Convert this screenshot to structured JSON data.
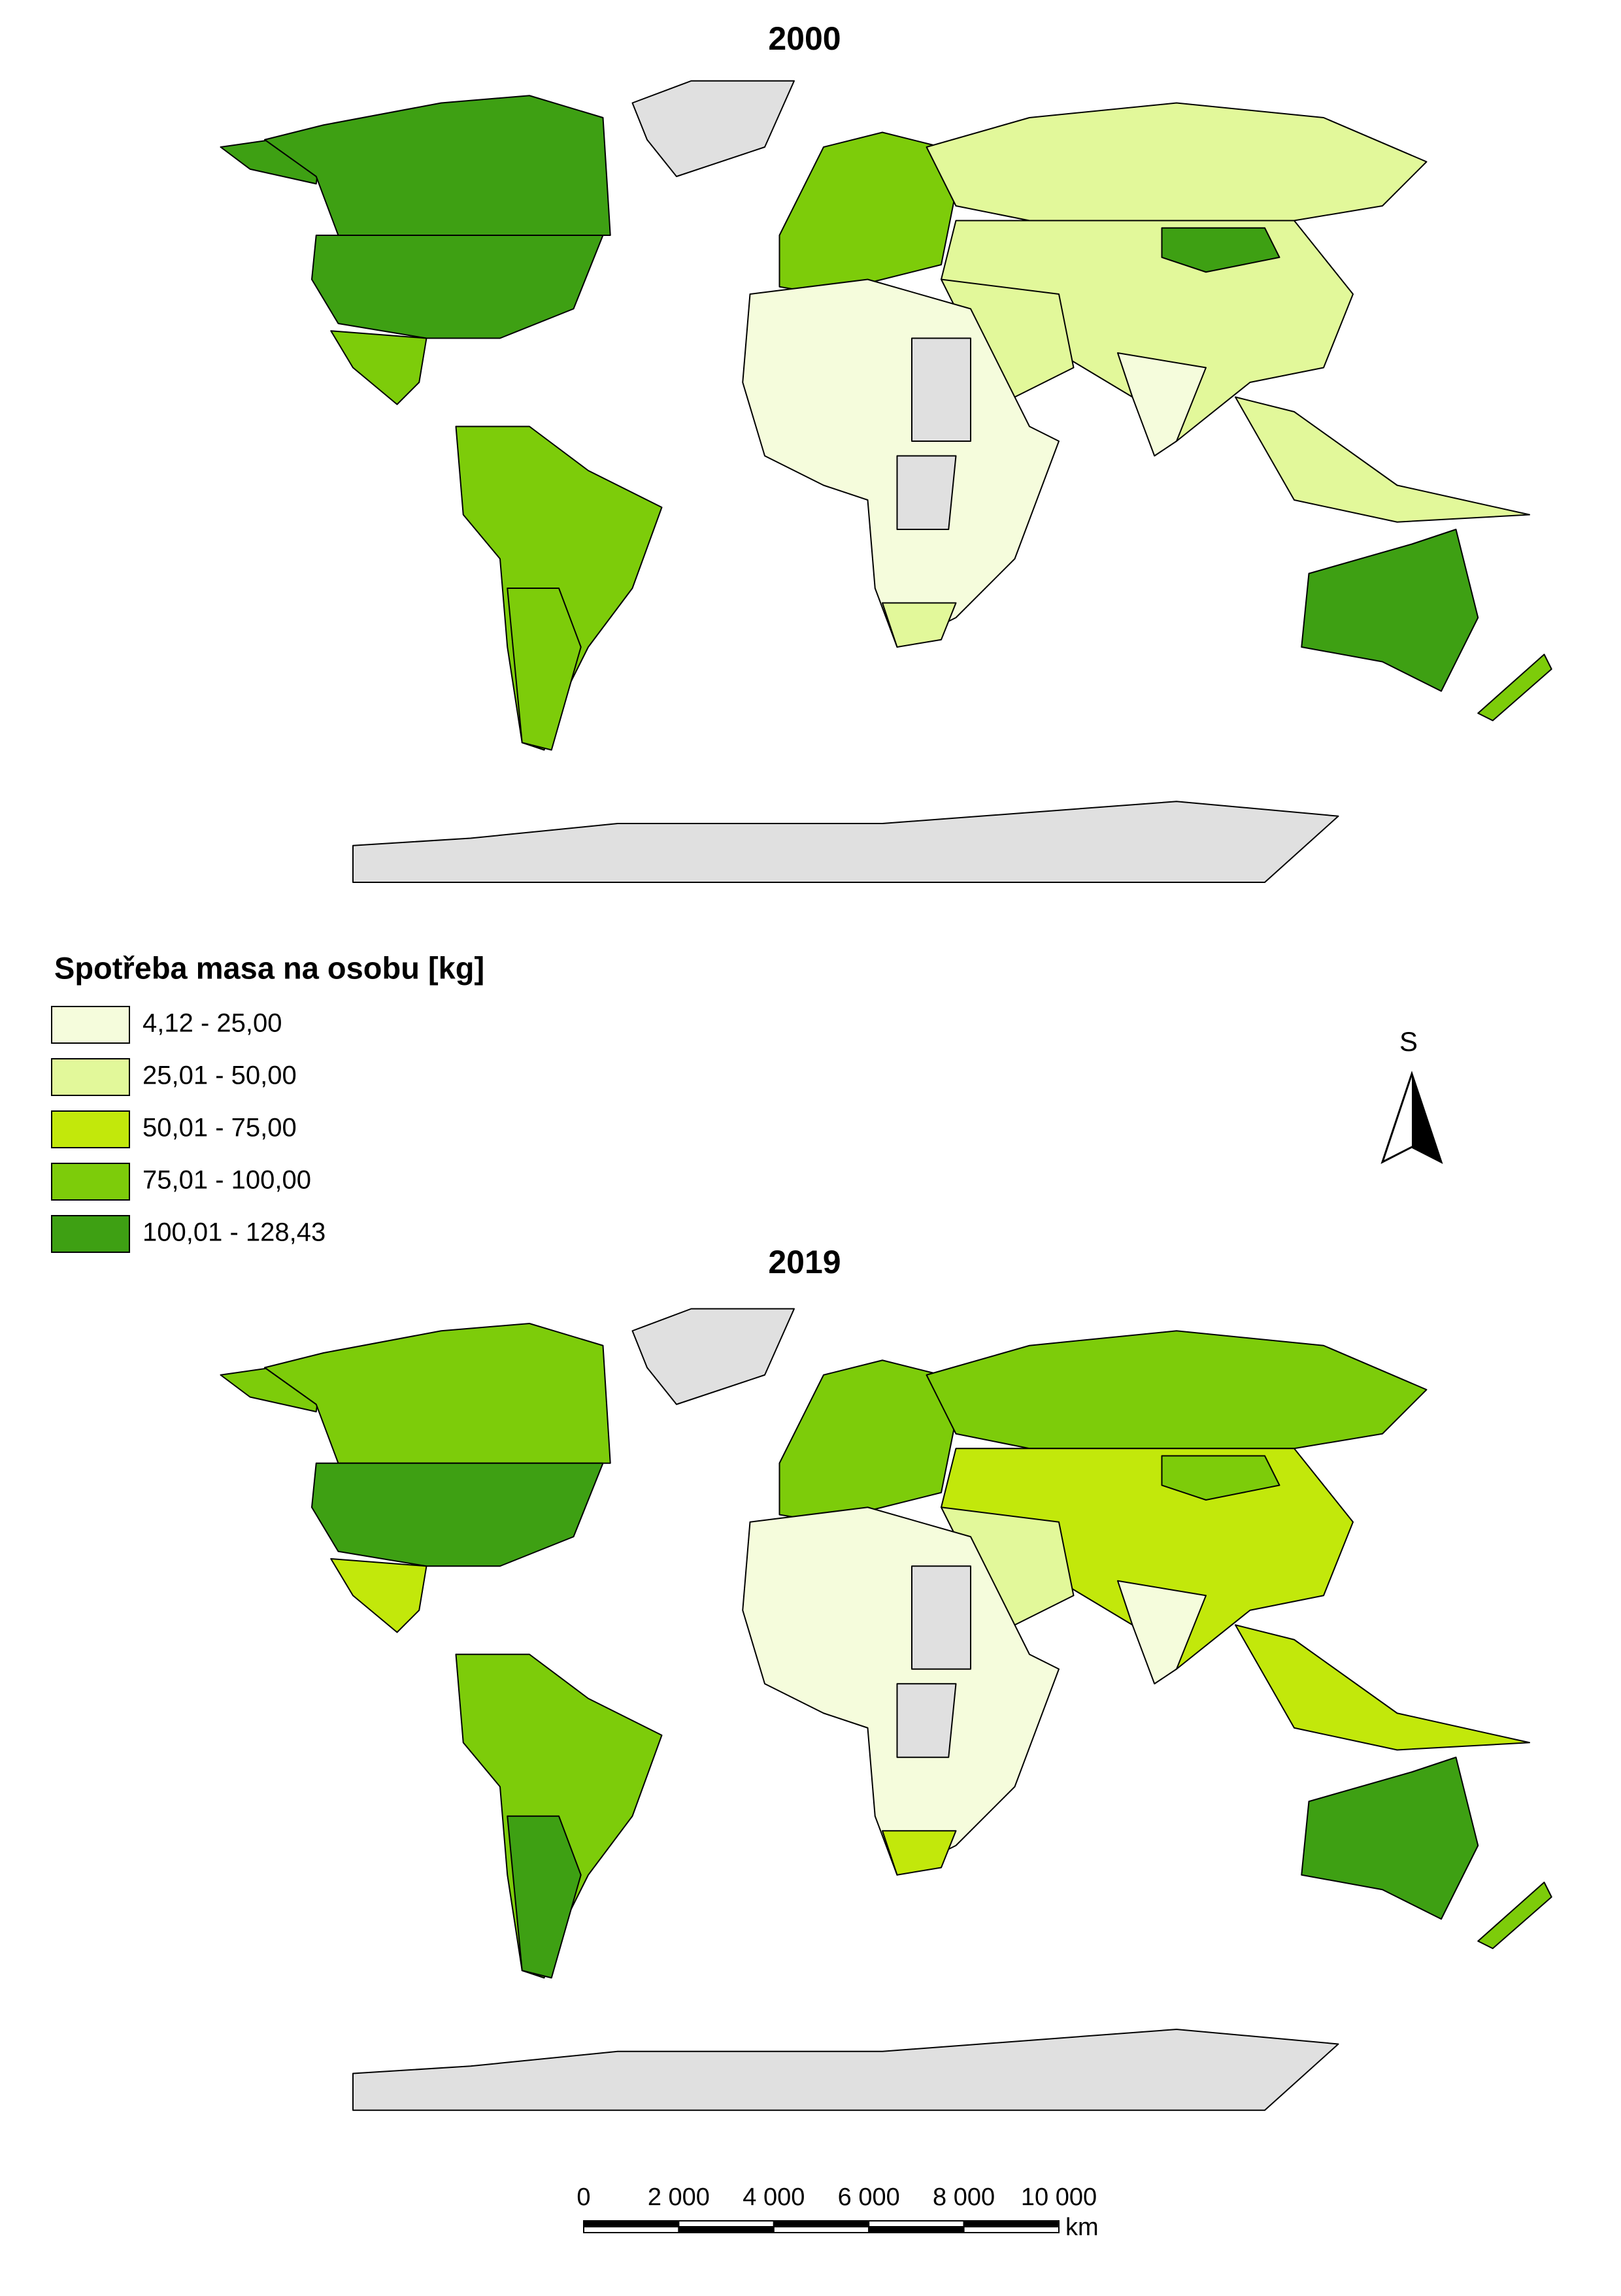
{
  "maps": [
    {
      "title": "2000"
    },
    {
      "title": "2019"
    }
  ],
  "legend": {
    "title": "Spotřeba masa na osobu [kg]",
    "items": [
      {
        "label": "4,12 - 25,00",
        "color": "#f5fcdc"
      },
      {
        "label": "25,01 - 50,00",
        "color": "#e2f89a"
      },
      {
        "label": "50,01 - 75,00",
        "color": "#c2e80b"
      },
      {
        "label": "75,01 - 100,00",
        "color": "#7dcc0a"
      },
      {
        "label": "100,01 - 128,43",
        "color": "#3ea013"
      }
    ]
  },
  "north_arrow": {
    "label": "S"
  },
  "scale_bar": {
    "labels": [
      "0",
      "2 000",
      "4 000",
      "6 000",
      "8 000",
      "10 000"
    ],
    "unit": "km"
  }
}
